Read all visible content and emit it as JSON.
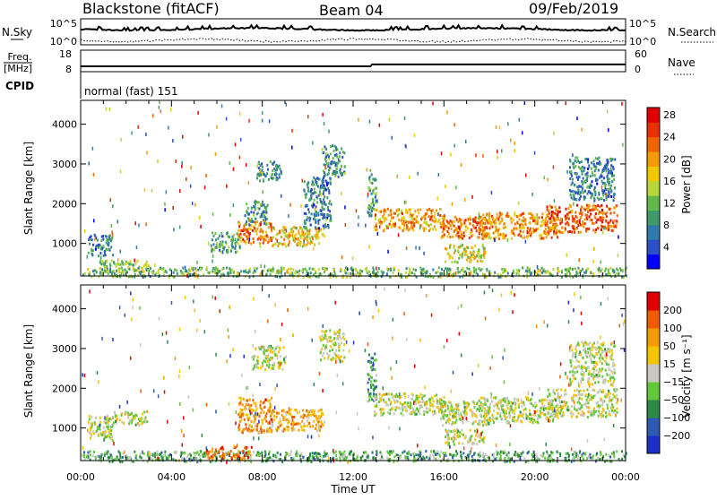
{
  "header": {
    "station": "Blackstone (fitACF)",
    "beam": "Beam 04",
    "date": "09/Feb/2019"
  },
  "chart_data": [
    {
      "type": "line",
      "panel": "noise",
      "left_label": "N.Sky",
      "right_label": "N.Search",
      "left_ticks": [
        "10^5",
        "10^0"
      ],
      "right_ticks": [
        "10^5",
        "10^0"
      ]
    },
    {
      "type": "line",
      "panel": "freq-nave",
      "left_label_1": "Freq.",
      "left_label_2": "[MHz]",
      "right_label": "Nave",
      "left_ticks": [
        "18",
        "8"
      ],
      "right_ticks": [
        "60",
        "0"
      ],
      "freq_segments": [
        {
          "x0": 0.0,
          "x1": 12.8,
          "y": 10.5
        },
        {
          "x0": 12.8,
          "x1": 24.0,
          "y": 11.4
        }
      ],
      "freq_range": [
        8,
        18
      ]
    },
    {
      "type": "table",
      "panel": "cpid",
      "label": "CPID",
      "program": "normal (fast) 151"
    },
    {
      "type": "heatmap",
      "panel": "power",
      "ylabel": "Slant Range [km]",
      "y_ticks": [
        1000,
        2000,
        3000,
        4000
      ],
      "ylim": [
        180,
        4600
      ],
      "colorbar_label": "Power [dB]",
      "colorbar_ticks": [
        4,
        8,
        12,
        16,
        20,
        24,
        28
      ],
      "colorbar_colors": [
        "#0000ff",
        "#2a50c8",
        "#2f7aa8",
        "#3e9a6a",
        "#62b84a",
        "#b6d63c",
        "#f0c800",
        "#f59a00",
        "#f06400",
        "#e83000",
        "#e00000"
      ],
      "regions": [
        {
          "x0": 0.3,
          "x1": 1.4,
          "y0": 700,
          "y1": 1250,
          "level": 0.25
        },
        {
          "x0": 0.8,
          "x1": 3.0,
          "y0": 300,
          "y1": 600,
          "level": 0.45
        },
        {
          "x0": 5.7,
          "x1": 7.0,
          "y0": 800,
          "y1": 1300,
          "level": 0.35
        },
        {
          "x0": 6.9,
          "x1": 8.4,
          "y0": 1000,
          "y1": 1600,
          "level": 0.75
        },
        {
          "x0": 7.2,
          "x1": 8.2,
          "y0": 1500,
          "y1": 2100,
          "level": 0.3
        },
        {
          "x0": 8.4,
          "x1": 10.7,
          "y0": 950,
          "y1": 1450,
          "level": 0.6
        },
        {
          "x0": 7.7,
          "x1": 8.8,
          "y0": 2600,
          "y1": 3100,
          "level": 0.3
        },
        {
          "x0": 9.8,
          "x1": 11.0,
          "y0": 1400,
          "y1": 2700,
          "level": 0.25
        },
        {
          "x0": 10.6,
          "x1": 11.6,
          "y0": 2700,
          "y1": 3500,
          "level": 0.3
        },
        {
          "x0": 12.6,
          "x1": 13.0,
          "y0": 1700,
          "y1": 2900,
          "level": 0.35
        },
        {
          "x0": 12.9,
          "x1": 16.0,
          "y0": 1350,
          "y1": 1900,
          "level": 0.7
        },
        {
          "x0": 15.8,
          "x1": 18.0,
          "y0": 1150,
          "y1": 1700,
          "level": 0.75
        },
        {
          "x0": 17.5,
          "x1": 21.0,
          "y0": 1150,
          "y1": 1800,
          "level": 0.7
        },
        {
          "x0": 20.5,
          "x1": 23.6,
          "y0": 1300,
          "y1": 2000,
          "level": 0.8
        },
        {
          "x0": 16.0,
          "x1": 17.8,
          "y0": 550,
          "y1": 1000,
          "level": 0.55
        },
        {
          "x0": 21.5,
          "x1": 23.5,
          "y0": 2100,
          "y1": 3200,
          "level": 0.25
        },
        {
          "x0": 0.0,
          "x1": 24.0,
          "y0": 180,
          "y1": 420,
          "level": 0.4
        }
      ]
    },
    {
      "type": "heatmap",
      "panel": "velocity",
      "ylabel": "Slant Range [km]",
      "y_ticks": [
        1000,
        2000,
        3000,
        4000
      ],
      "ylim": [
        180,
        4600
      ],
      "xlabel": "Time UT",
      "x_ticks": [
        "00:00",
        "04:00",
        "08:00",
        "12:00",
        "16:00",
        "20:00",
        "00:00"
      ],
      "xlim": [
        0,
        24
      ],
      "colorbar_label": "Velocity [m s⁻¹]",
      "colorbar_ticks": [
        "200",
        "100",
        "50",
        "15",
        "−15",
        "−50",
        "−100",
        "−200"
      ],
      "colorbar_colors": [
        "#1e2ec8",
        "#2f5ab4",
        "#2a8a46",
        "#62c83a",
        "#c8c8c0",
        "#f6c400",
        "#f59a00",
        "#f05a00",
        "#e00000"
      ],
      "regions": [
        {
          "x0": 0.3,
          "x1": 1.4,
          "y0": 700,
          "y1": 1350,
          "level": 0.5
        },
        {
          "x0": 1.4,
          "x1": 2.9,
          "y0": 1100,
          "y1": 1450,
          "level": 0.5
        },
        {
          "x0": 6.9,
          "x1": 8.4,
          "y0": 900,
          "y1": 1800,
          "level": 0.72
        },
        {
          "x0": 8.4,
          "x1": 10.7,
          "y0": 950,
          "y1": 1500,
          "level": 0.68
        },
        {
          "x0": 7.5,
          "x1": 9.0,
          "y0": 2500,
          "y1": 3100,
          "level": 0.5
        },
        {
          "x0": 10.5,
          "x1": 11.6,
          "y0": 2700,
          "y1": 3500,
          "level": 0.5
        },
        {
          "x0": 12.6,
          "x1": 13.0,
          "y0": 1700,
          "y1": 2900,
          "level": 0.3
        },
        {
          "x0": 12.9,
          "x1": 16.0,
          "y0": 1350,
          "y1": 1900,
          "level": 0.5
        },
        {
          "x0": 15.8,
          "x1": 18.0,
          "y0": 1100,
          "y1": 1700,
          "level": 0.5
        },
        {
          "x0": 17.5,
          "x1": 21.0,
          "y0": 1150,
          "y1": 1800,
          "level": 0.5
        },
        {
          "x0": 20.5,
          "x1": 23.6,
          "y0": 1300,
          "y1": 2000,
          "level": 0.5
        },
        {
          "x0": 16.0,
          "x1": 17.8,
          "y0": 600,
          "y1": 1000,
          "level": 0.5
        },
        {
          "x0": 21.5,
          "x1": 23.5,
          "y0": 2100,
          "y1": 3200,
          "level": 0.5
        },
        {
          "x0": 0.0,
          "x1": 24.0,
          "y0": 180,
          "y1": 450,
          "level": 0.35
        },
        {
          "x0": 5.5,
          "x1": 7.5,
          "y0": 250,
          "y1": 550,
          "level": 0.8
        }
      ]
    }
  ]
}
